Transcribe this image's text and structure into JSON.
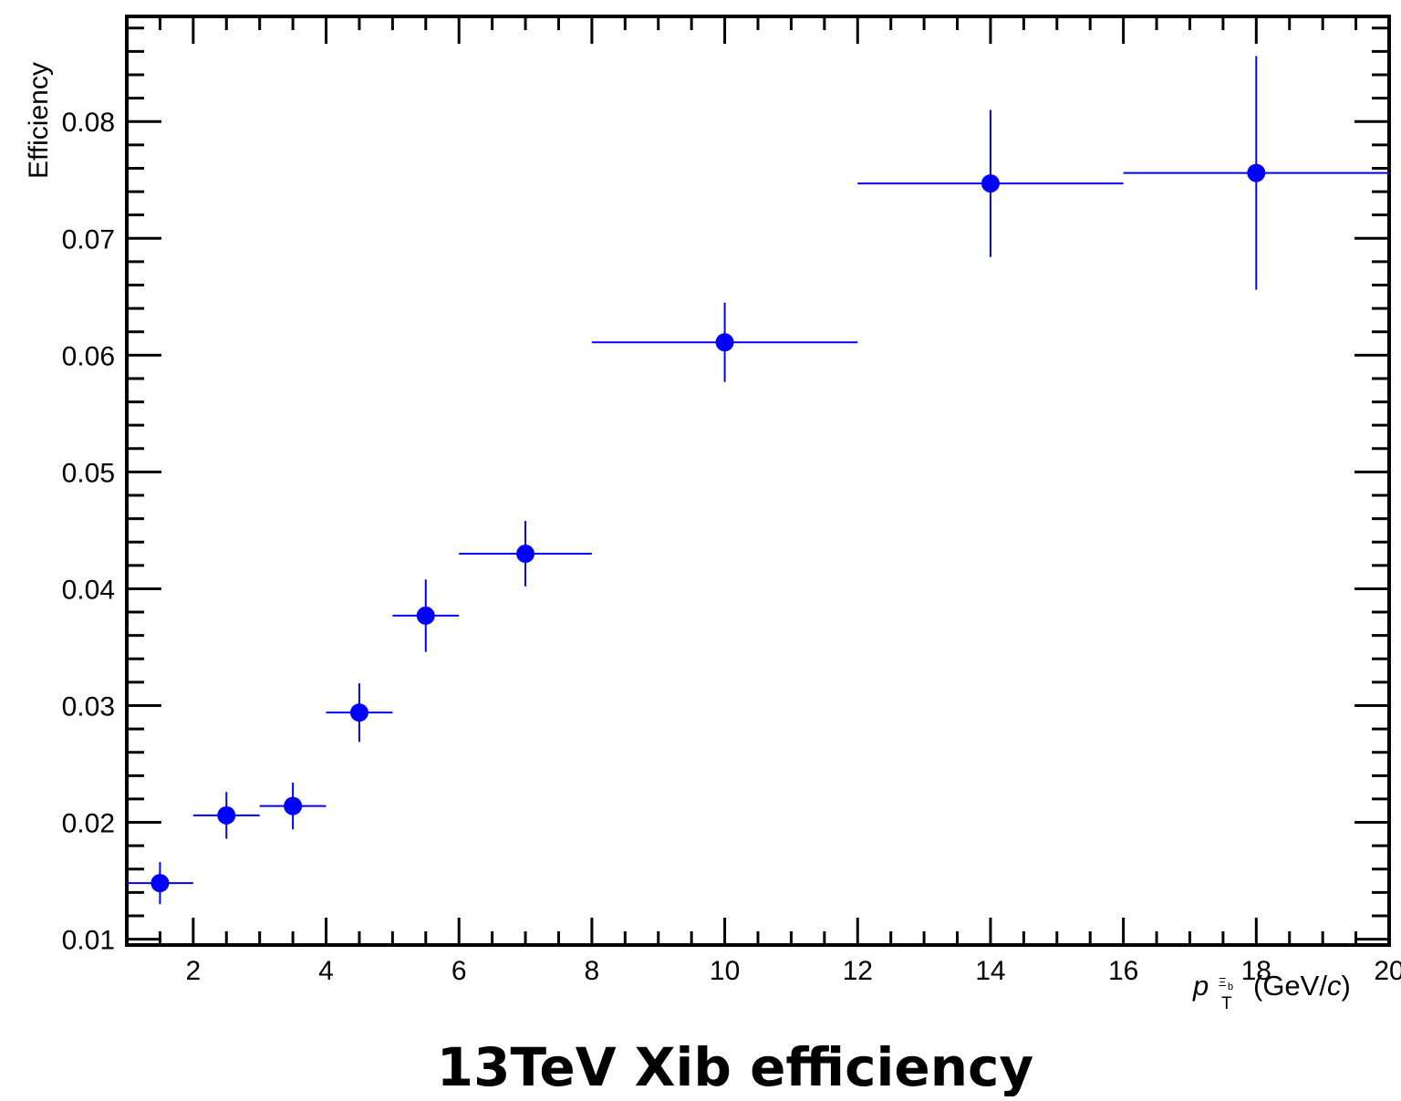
{
  "chart_data": {
    "type": "scatter",
    "title": "13TeV Xib efficiency",
    "xlabel": "p_T^{Ξb} (GeV/c)",
    "ylabel": "Efficiency",
    "xlim": [
      1,
      20
    ],
    "ylim": [
      0.0095,
      0.089
    ],
    "x_ticks": [
      "2",
      "4",
      "6",
      "8",
      "10",
      "12",
      "14",
      "16",
      "18",
      "20"
    ],
    "y_ticks": [
      "0.01",
      "0.02",
      "0.03",
      "0.04",
      "0.05",
      "0.06",
      "0.07",
      "0.08"
    ],
    "x_tick_values": [
      2,
      4,
      6,
      8,
      10,
      12,
      14,
      16,
      18,
      20
    ],
    "y_tick_values": [
      0.01,
      0.02,
      0.03,
      0.04,
      0.05,
      0.06,
      0.07,
      0.08
    ],
    "legend": "none",
    "grid": false,
    "marker_color": "#0000ff",
    "points": [
      {
        "x": 1.5,
        "x_low": 1,
        "x_high": 2,
        "y": 0.0148,
        "y_err": 0.0018
      },
      {
        "x": 2.5,
        "x_low": 2,
        "x_high": 3,
        "y": 0.0206,
        "y_err": 0.002
      },
      {
        "x": 3.5,
        "x_low": 3,
        "x_high": 4,
        "y": 0.0214,
        "y_err": 0.002
      },
      {
        "x": 4.5,
        "x_low": 4,
        "x_high": 5,
        "y": 0.0294,
        "y_err": 0.0025
      },
      {
        "x": 5.5,
        "x_low": 5,
        "x_high": 6,
        "y": 0.0377,
        "y_err": 0.0031
      },
      {
        "x": 7,
        "x_low": 6,
        "x_high": 8,
        "y": 0.043,
        "y_err": 0.0028
      },
      {
        "x": 10,
        "x_low": 8,
        "x_high": 12,
        "y": 0.0611,
        "y_err": 0.0034
      },
      {
        "x": 14,
        "x_low": 12,
        "x_high": 16,
        "y": 0.0747,
        "y_err": 0.0063
      },
      {
        "x": 18,
        "x_low": 16,
        "x_high": 20,
        "y": 0.0756,
        "y_err": 0.01
      }
    ]
  }
}
